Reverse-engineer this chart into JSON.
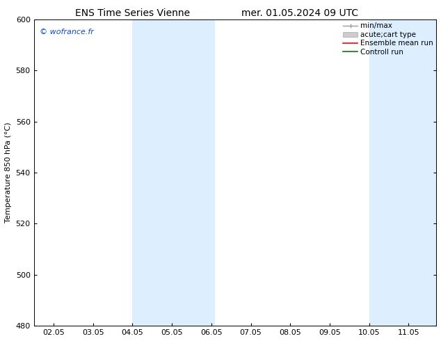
{
  "title_left": "ENS Time Series Vienne",
  "title_right": "mer. 01.05.2024 09 UTC",
  "ylabel": "Temperature 850 hPa (°C)",
  "xlim": [
    1.5,
    11.7
  ],
  "ylim": [
    480,
    600
  ],
  "yticks": [
    480,
    500,
    520,
    540,
    560,
    580,
    600
  ],
  "xtick_labels": [
    "02.05",
    "03.05",
    "04.05",
    "05.05",
    "06.05",
    "07.05",
    "08.05",
    "09.05",
    "10.05",
    "11.05"
  ],
  "xtick_positions": [
    2.0,
    3.0,
    4.0,
    5.0,
    6.0,
    7.0,
    8.0,
    9.0,
    10.0,
    11.0
  ],
  "shaded_bands": [
    {
      "xmin": 4.0,
      "xmax": 6.1,
      "color": "#ddeeff"
    },
    {
      "xmin": 10.0,
      "xmax": 11.7,
      "color": "#ddeeff"
    }
  ],
  "watermark_text": "© wofrance.fr",
  "watermark_color": "#1144cc",
  "background_color": "#ffffff",
  "band_color": "#ddeeff",
  "legend_fontsize": 7.5,
  "title_fontsize": 10,
  "ylabel_fontsize": 8,
  "tick_labelsize": 8
}
